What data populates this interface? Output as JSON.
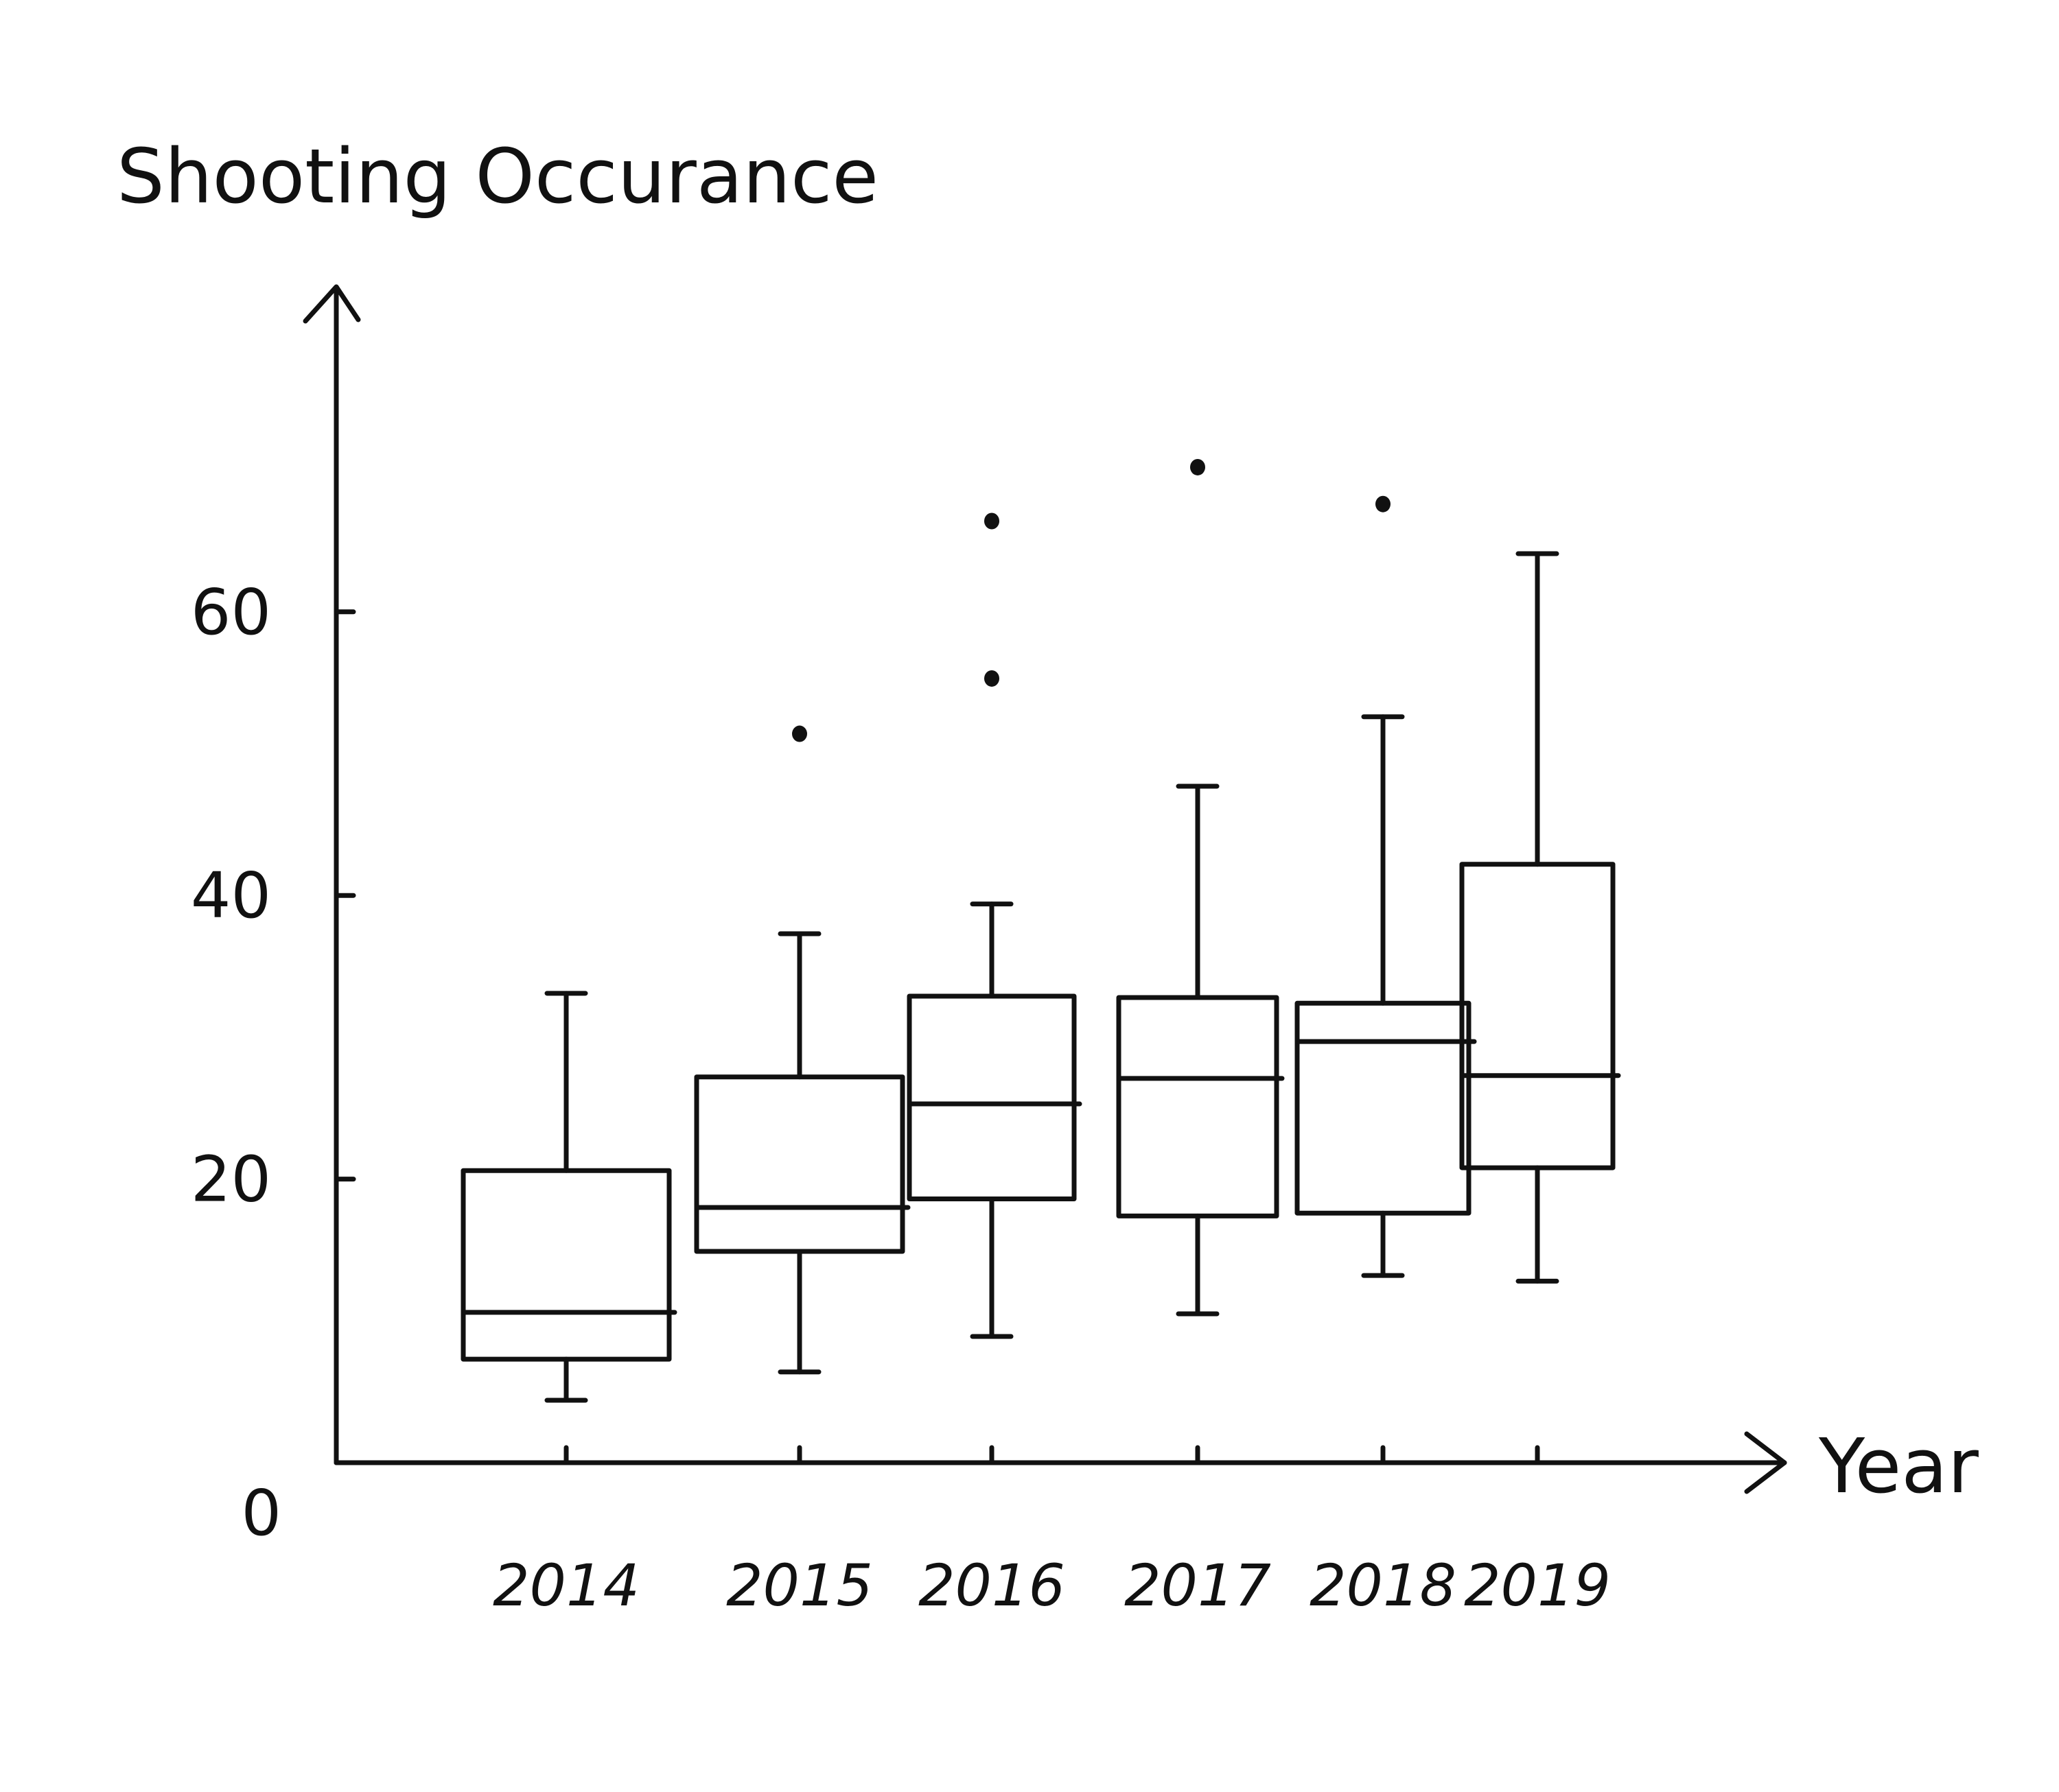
{
  "chart_data": {
    "type": "box",
    "ylabel": "Shooting Occurance",
    "xlabel": "Year",
    "yticks": [
      0,
      20,
      40,
      60
    ],
    "ylim": [
      0,
      80
    ],
    "grid": false,
    "categories": [
      "2014",
      "2015",
      "2016",
      "2017",
      "2018",
      "2019"
    ],
    "boxes": [
      {
        "year": "2014",
        "min": 4.4,
        "q1": 7.3,
        "median": 10.6,
        "q3": 20.6,
        "max": 33.1,
        "outliers": []
      },
      {
        "year": "2015",
        "min": 6.4,
        "q1": 14.9,
        "median": 18.0,
        "q3": 27.2,
        "max": 37.3,
        "outliers": [
          51.4
        ]
      },
      {
        "year": "2016",
        "min": 8.9,
        "q1": 18.6,
        "median": 25.3,
        "q3": 32.9,
        "max": 39.4,
        "outliers": [
          55.3,
          66.4
        ]
      },
      {
        "year": "2017",
        "min": 10.5,
        "q1": 17.4,
        "median": 27.1,
        "q3": 32.8,
        "max": 47.7,
        "outliers": [
          70.2
        ]
      },
      {
        "year": "2018",
        "min": 13.2,
        "q1": 17.6,
        "median": 29.7,
        "q3": 32.4,
        "max": 52.6,
        "outliers": [
          67.6
        ]
      },
      {
        "year": "2019",
        "min": 12.8,
        "q1": 20.8,
        "median": 27.3,
        "q3": 42.2,
        "max": 64.1,
        "outliers": []
      }
    ]
  }
}
